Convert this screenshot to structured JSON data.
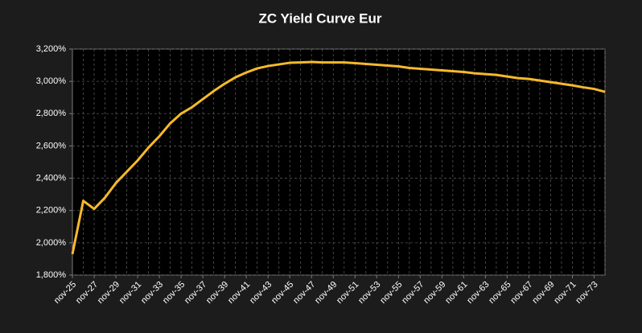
{
  "chart_data": {
    "type": "line",
    "title": "ZC Yield Curve Eur",
    "categories": [
      "nov-25",
      null,
      "nov-27",
      null,
      "nov-29",
      null,
      "nov-31",
      null,
      "nov-33",
      null,
      "nov-35",
      null,
      "nov-37",
      null,
      "nov-39",
      null,
      "nov-41",
      null,
      "nov-43",
      null,
      "nov-45",
      null,
      "nov-47",
      null,
      "nov-49",
      null,
      "nov-51",
      null,
      "nov-53",
      null,
      "nov-55",
      null,
      "nov-57",
      null,
      "nov-59",
      null,
      "nov-61",
      null,
      "nov-63",
      null,
      "nov-65",
      null,
      "nov-67",
      null,
      "nov-69",
      null,
      "nov-71",
      null,
      "nov-73",
      null
    ],
    "values": [
      1.93,
      2.26,
      2.21,
      2.28,
      2.37,
      2.44,
      2.51,
      2.59,
      2.66,
      2.74,
      2.8,
      2.84,
      2.89,
      2.94,
      2.985,
      3.025,
      3.055,
      3.08,
      3.095,
      3.105,
      3.115,
      3.117,
      3.12,
      3.117,
      3.117,
      3.117,
      3.113,
      3.108,
      3.103,
      3.098,
      3.093,
      3.083,
      3.078,
      3.073,
      3.068,
      3.063,
      3.058,
      3.05,
      3.045,
      3.04,
      3.03,
      3.02,
      3.015,
      3.005,
      2.995,
      2.985,
      2.975,
      2.963,
      2.953,
      2.935
    ],
    "color": "#f6b92b",
    "ylim": [
      1.8,
      3.2
    ],
    "yticks": [
      {
        "value": 1.8,
        "label": "1,800%"
      },
      {
        "value": 2.0,
        "label": "2,000%"
      },
      {
        "value": 2.2,
        "label": "2,200%"
      },
      {
        "value": 2.4,
        "label": "2,400%"
      },
      {
        "value": 2.6,
        "label": "2,600%"
      },
      {
        "value": 2.8,
        "label": "2,800%"
      },
      {
        "value": 3.0,
        "label": "3,000%"
      },
      {
        "value": 3.2,
        "label": "3,200%"
      }
    ],
    "grid": true
  }
}
